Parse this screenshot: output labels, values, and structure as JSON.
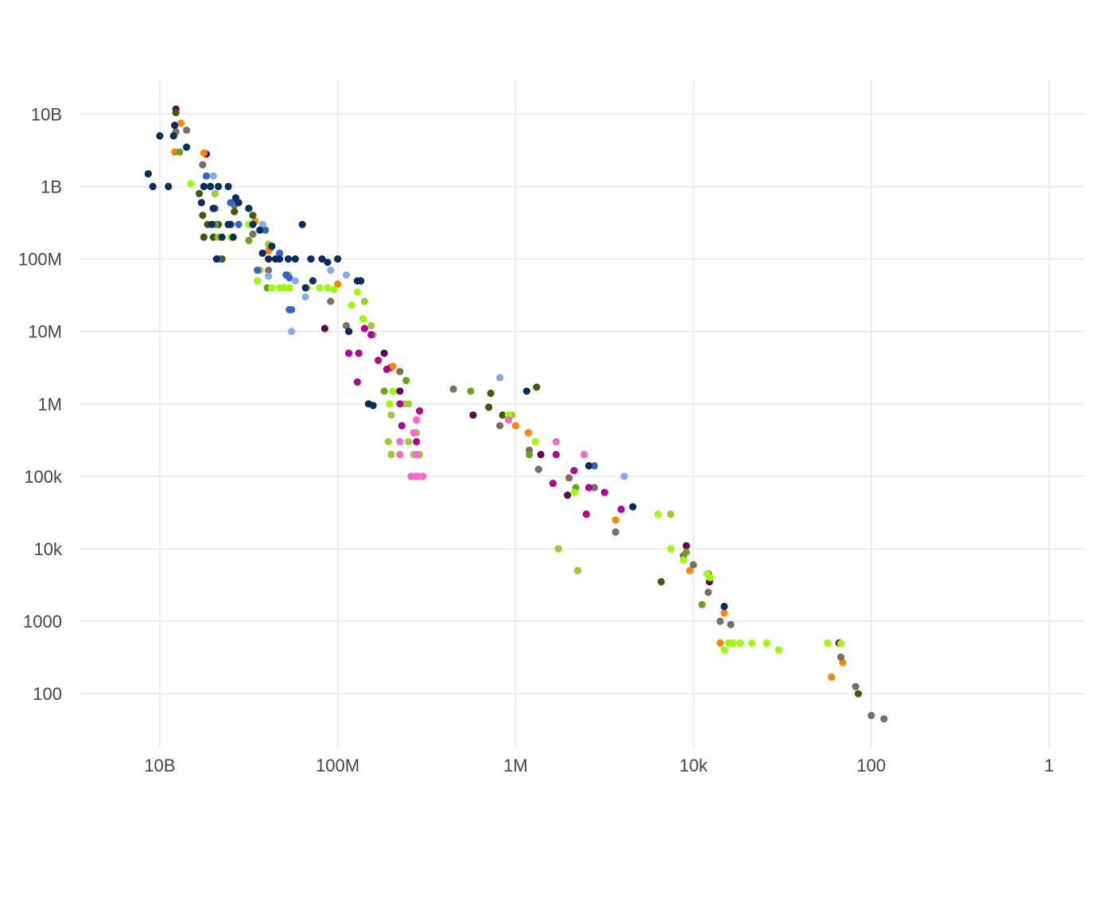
{
  "chart_data": {
    "type": "scatter",
    "title": "",
    "xlabel": "",
    "ylabel": "",
    "x_scale": "log",
    "y_scale": "log",
    "x_reversed": true,
    "grid": true,
    "legend": "none",
    "x_ticks": [
      {
        "value": 10000000000,
        "label": "10B"
      },
      {
        "value": 100000000,
        "label": "100M"
      },
      {
        "value": 1000000,
        "label": "1M"
      },
      {
        "value": 10000,
        "label": "10k"
      },
      {
        "value": 100,
        "label": "100"
      },
      {
        "value": 1,
        "label": "1"
      }
    ],
    "y_ticks": [
      {
        "value": 10000000000,
        "label": "10B"
      },
      {
        "value": 1000000000,
        "label": "1B"
      },
      {
        "value": 100000000,
        "label": "100M"
      },
      {
        "value": 10000000,
        "label": "10M"
      },
      {
        "value": 1000000,
        "label": "1M"
      },
      {
        "value": 100000,
        "label": "100k"
      },
      {
        "value": 10000,
        "label": "10k"
      },
      {
        "value": 1000,
        "label": "1000"
      },
      {
        "value": 100,
        "label": "100"
      }
    ],
    "xlim": [
      80000000000,
      0.4
    ],
    "ylim": [
      18,
      30000000000
    ],
    "series": [
      {
        "color": "#6a0050",
        "points": [
          [
            6600000000.0,
            11700000000.0
          ],
          [
            3000000000.0,
            2800000000.0
          ],
          [
            1450000000.0,
            580000000.0
          ],
          [
            580000000.0,
            140000000.0
          ],
          [
            140000000.0,
            11000000.0
          ],
          [
            30000000.0,
            5000000.0
          ],
          [
            25000000.0,
            3200000.0
          ],
          [
            20000000.0,
            1500000.0
          ],
          [
            3000000.0,
            700000.0
          ],
          [
            520000.0,
            200000.0
          ],
          [
            260000.0,
            55000.0
          ],
          [
            12000.0,
            11000.0
          ],
          [
            6600.0,
            3500.0
          ],
          [
            230.0,
            500.0
          ]
        ]
      },
      {
        "color": "#ff8500",
        "points": [
          [
            5800000000.0,
            7500000000.0
          ],
          [
            6800000000.0,
            3000000000.0
          ],
          [
            3200000000.0,
            2900000000.0
          ],
          [
            850000000.0,
            330000000.0
          ],
          [
            600000000.0,
            130000000.0
          ],
          [
            100000000.0,
            45000000.0
          ],
          [
            24000000.0,
            3300000.0
          ],
          [
            1000000.0,
            500000.0
          ],
          [
            720000.0,
            400000.0
          ],
          [
            75000.0,
            25000.0
          ],
          [
            11000.0,
            5000.0
          ],
          [
            4500.0,
            1300.0
          ],
          [
            5000.0,
            500.0
          ],
          [
            280.0,
            170.0
          ],
          [
            210.0,
            270.0
          ]
        ]
      },
      {
        "color": "#7d6e62",
        "points": [
          [
            6600000000.0,
            5700000000.0
          ],
          [
            5000000000.0,
            6000000000.0
          ],
          [
            3300000000.0,
            2000000000.0
          ],
          [
            1450000000.0,
            550000000.0
          ],
          [
            900000000.0,
            220000000.0
          ],
          [
            600000000.0,
            70000000.0
          ],
          [
            120000000.0,
            26000000.0
          ],
          [
            80000000.0,
            12000000.0
          ],
          [
            20000000.0,
            2800000.0
          ],
          [
            5000000.0,
            1600000.0
          ],
          [
            1500000.0,
            500000.0
          ],
          [
            700000.0,
            230000.0
          ],
          [
            550000.0,
            125000.0
          ],
          [
            250000.0,
            95000.0
          ],
          [
            130000.0,
            70000.0
          ],
          [
            75000.0,
            17000.0
          ],
          [
            13000.0,
            8000.0
          ],
          [
            10000.0,
            6000.0
          ],
          [
            6800.0,
            2500.0
          ],
          [
            5000.0,
            1000.0
          ],
          [
            3800.0,
            900.0
          ],
          [
            220.0,
            320.0
          ],
          [
            150.0,
            125.0
          ],
          [
            100.0,
            50
          ],
          [
            72.0,
            45
          ]
        ]
      },
      {
        "color": "#3f5c0a",
        "points": [
          [
            6600000000.0,
            10500000000.0
          ],
          [
            3600000000.0,
            800000000.0
          ],
          [
            3300000000.0,
            400000000.0
          ],
          [
            3200000000.0,
            200000000.0
          ],
          [
            2900000000.0,
            300000000.0
          ],
          [
            2500000000.0,
            200000000.0
          ],
          [
            2200000000.0,
            300000000.0
          ],
          [
            2000000000.0,
            100000000.0
          ],
          [
            1450000000.0,
            450000000.0
          ],
          [
            900000000.0,
            400000000.0
          ],
          [
            55000000.0,
            50000000.0
          ],
          [
            2000000.0,
            900000.0
          ],
          [
            1900000.0,
            1400000.0
          ],
          [
            1400000.0,
            700000.0
          ],
          [
            580000.0,
            1700000.0
          ],
          [
            23000.0,
            3500.0
          ],
          [
            6800.0,
            4500.0
          ],
          [
            140.0,
            100.0
          ]
        ]
      },
      {
        "color": "#6aa515",
        "points": [
          [
            6000000000.0,
            3000000000.0
          ],
          [
            2400000000.0,
            300000000.0
          ],
          [
            1000000000.0,
            180000000.0
          ],
          [
            620000000.0,
            40000000.0
          ],
          [
            30000000.0,
            1500000.0
          ],
          [
            17000000.0,
            2100000.0
          ],
          [
            3200000.0,
            1500000.0
          ],
          [
            700000.0,
            200000.0
          ],
          [
            210000.0,
            70000.0
          ],
          [
            12000.0,
            9000.0
          ],
          [
            8000.0,
            1700.0
          ],
          [
            7000.0,
            4500.0
          ]
        ]
      },
      {
        "color": "#9acd32",
        "points": [
          [
            2400000000.0,
            800000000.0
          ],
          [
            2200000000.0,
            200000000.0
          ],
          [
            1000000000.0,
            300000000.0
          ],
          [
            750000000.0,
            70000000.0
          ],
          [
            600000000.0,
            160000000.0
          ],
          [
            360000000.0,
            60000000.0
          ],
          [
            50000000.0,
            26000000.0
          ],
          [
            42000000.0,
            12000000.0
          ],
          [
            40000000.0,
            9000000.0
          ],
          [
            25000000.0,
            700000.0
          ],
          [
            18000000.0,
            1000000.0
          ],
          [
            27000000.0,
            300000.0
          ],
          [
            25000000.0,
            200000.0
          ],
          [
            16000000.0,
            1000000.0
          ],
          [
            16000000.0,
            300000.0
          ],
          [
            14000000.0,
            200000.0
          ],
          [
            13000000.0,
            400000.0
          ],
          [
            12000000.0,
            200000.0
          ],
          [
            1100000.0,
            700000.0
          ],
          [
            330000.0,
            10000.0
          ],
          [
            200000.0,
            5000.0
          ],
          [
            18000.0,
            30000.0
          ]
        ]
      },
      {
        "color": "#99ff00",
        "points": [
          [
            4500000000.0,
            1100000000.0
          ],
          [
            2500000000.0,
            500000000.0
          ],
          [
            1600000000.0,
            200000000.0
          ],
          [
            1000000000.0,
            300000000.0
          ],
          [
            800000000.0,
            50000000.0
          ],
          [
            550000000.0,
            40000000.0
          ],
          [
            450000000.0,
            40000000.0
          ],
          [
            400000000.0,
            40000000.0
          ],
          [
            350000000.0,
            40000000.0
          ],
          [
            220000000.0,
            40000000.0
          ],
          [
            160000000.0,
            40000000.0
          ],
          [
            130000000.0,
            40000000.0
          ],
          [
            110000000.0,
            38000000.0
          ],
          [
            60000000.0,
            35000000.0
          ],
          [
            70000000.0,
            23000000.0
          ],
          [
            52000000.0,
            15000000.0
          ],
          [
            26000000.0,
            1000000.0
          ],
          [
            24000000.0,
            1500000.0
          ],
          [
            1200000.0,
            700000.0
          ],
          [
            600000.0,
            300000.0
          ],
          [
            220000.0,
            60000.0
          ],
          [
            25000.0,
            30000.0
          ],
          [
            18000.0,
            10000.0
          ],
          [
            13000.0,
            7000.0
          ],
          [
            7000.0,
            4500.0
          ],
          [
            6500.0,
            4000.0
          ],
          [
            4500.0,
            400.0
          ],
          [
            4000.0,
            500.0
          ],
          [
            3600.0,
            500.0
          ],
          [
            3000.0,
            500.0
          ],
          [
            2200.0,
            500.0
          ],
          [
            1500.0,
            500.0
          ],
          [
            1100.0,
            400.0
          ],
          [
            310.0,
            500.0
          ],
          [
            220.0,
            490.0
          ]
        ]
      },
      {
        "color": "#b30095",
        "points": [
          [
            75000000.0,
            10000000.0
          ],
          [
            75000000.0,
            5000000.0
          ],
          [
            58000000.0,
            5000000.0
          ],
          [
            60000000.0,
            2000000.0
          ],
          [
            50000000.0,
            11000000.0
          ],
          [
            42000000.0,
            9000000.0
          ],
          [
            28000000.0,
            3000000.0
          ],
          [
            35000000.0,
            4000000.0
          ],
          [
            20000000.0,
            1000000.0
          ],
          [
            19000000.0,
            500000.0
          ],
          [
            12000000.0,
            800000.0
          ],
          [
            13000000.0,
            300000.0
          ],
          [
            380000.0,
            80000.0
          ],
          [
            350000.0,
            200000.0
          ],
          [
            220000.0,
            120000.0
          ],
          [
            150000.0,
            70000.0
          ],
          [
            100000.0,
            60000.0
          ],
          [
            160000.0,
            30000.0
          ],
          [
            65000.0,
            35000.0
          ],
          [
            13000000.0,
            600000.0
          ]
        ]
      },
      {
        "color": "#ff66cc",
        "points": [
          [
            20000000.0,
            300000.0
          ],
          [
            20000000.0,
            200000.0
          ],
          [
            14000000.0,
            400000.0
          ],
          [
            13000000.0,
            600000.0
          ],
          [
            15000000.0,
            100000.0
          ],
          [
            12500000.0,
            100000.0
          ],
          [
            11000000.0,
            100000.0
          ],
          [
            13500000.0,
            100000.0
          ],
          [
            13000000.0,
            200000.0
          ],
          [
            350000.0,
            300000.0
          ],
          [
            170000.0,
            200000.0
          ],
          [
            1200000.0,
            600000.0
          ]
        ]
      },
      {
        "color": "#3366cc",
        "points": [
          [
            3000000000.0,
            1400000000.0
          ],
          [
            2400000000.0,
            500000000.0
          ],
          [
            2200000000.0,
            100000000.0
          ],
          [
            1600000000.0,
            600000000.0
          ],
          [
            1300000000.0,
            300000000.0
          ],
          [
            800000000.0,
            70000000.0
          ],
          [
            650000000.0,
            250000000.0
          ],
          [
            450000000.0,
            120000000.0
          ],
          [
            380000000.0,
            60000000.0
          ],
          [
            350000000.0,
            55000000.0
          ],
          [
            350000000.0,
            20000000.0
          ],
          [
            330000000.0,
            20000000.0
          ],
          [
            130000.0,
            140000.0
          ]
        ]
      },
      {
        "color": "#86aaee",
        "points": [
          [
            2500000000.0,
            1400000000.0
          ],
          [
            700000000.0,
            300000000.0
          ],
          [
            600000000.0,
            58000000.0
          ],
          [
            300000000.0,
            50000000.0
          ],
          [
            330000000.0,
            10000000.0
          ],
          [
            230000000.0,
            30000000.0
          ],
          [
            120000000.0,
            70000000.0
          ],
          [
            80000000.0,
            60000000.0
          ],
          [
            1500000.0,
            2300000.0
          ],
          [
            60000.0,
            100000.0
          ]
        ]
      },
      {
        "color": "#022f5f",
        "points": [
          [
            7000000000.0,
            5000000000.0
          ],
          [
            13500000000.0,
            1500000000.0
          ],
          [
            12000000000.0,
            1000000000.0
          ],
          [
            10000000000.0,
            5000000000.0
          ],
          [
            3200000000.0,
            1000000000.0
          ],
          [
            2700000000.0,
            1000000000.0
          ],
          [
            2200000000.0,
            1000000000.0
          ],
          [
            1700000000.0,
            1000000000.0
          ],
          [
            2600000000.0,
            300000000.0
          ],
          [
            2000000000.0,
            200000000.0
          ],
          [
            1500000000.0,
            200000000.0
          ],
          [
            1600000000.0,
            300000000.0
          ],
          [
            1400000000.0,
            700000000.0
          ],
          [
            1000000000.0,
            500000000.0
          ],
          [
            750000000.0,
            250000000.0
          ],
          [
            550000000.0,
            150000000.0
          ],
          [
            500000000.0,
            100000000.0
          ],
          [
            450000000.0,
            100000000.0
          ],
          [
            300000000.0,
            100000000.0
          ],
          [
            200000000.0,
            100000000.0
          ],
          [
            130000000.0,
            90000000.0
          ],
          [
            100000000.0,
            100000000.0
          ],
          [
            60000000.0,
            50000000.0
          ],
          [
            55000000.0,
            50000000.0
          ],
          [
            45000000.0,
            1000000.0
          ],
          [
            40000000.0,
            950000.0
          ],
          [
            750000.0,
            1500000.0
          ],
          [
            150000.0,
            140000.0
          ],
          [
            48000.0,
            38000.0
          ],
          [
            4500.0,
            1600.0
          ],
          [
            5000000000.0,
            3500000000.0
          ],
          [
            8000000000.0,
            1000000000.0
          ]
        ]
      },
      {
        "color": "#0e2a66",
        "points": [
          [
            6800000000.0,
            7000000000.0
          ],
          [
            2500000000.0,
            500000000.0
          ],
          [
            3400000000.0,
            600000000.0
          ],
          [
            2300000000.0,
            100000000.0
          ],
          [
            1700000000.0,
            300000000.0
          ],
          [
            1300000000.0,
            600000000.0
          ],
          [
            900000000.0,
            300000000.0
          ],
          [
            700000000.0,
            120000000.0
          ],
          [
            600000000.0,
            100000000.0
          ],
          [
            250000000.0,
            300000000.0
          ],
          [
            230000000.0,
            40000000.0
          ],
          [
            360000000.0,
            100000000.0
          ],
          [
            190000000.0,
            50000000.0
          ],
          [
            150000000.0,
            100000000.0
          ],
          [
            75000000.0,
            10000000.0
          ]
        ]
      }
    ]
  }
}
